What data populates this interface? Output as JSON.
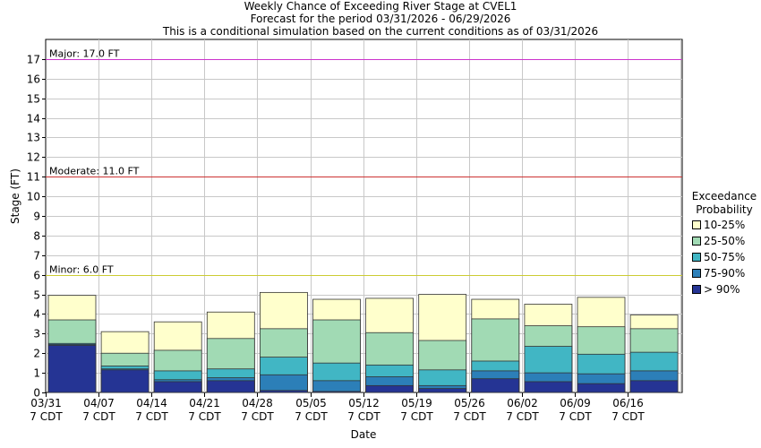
{
  "title_lines": [
    "Weekly Chance of Exceeding River Stage at CVEL1",
    "Forecast for the period 03/31/2026 - 06/29/2026",
    "This is a conditional simulation based on the current conditions as of 03/31/2026"
  ],
  "colors": {
    "p10_25": "#ffffcc",
    "p25_50": "#a1dab4",
    "p50_75": "#41b6c4",
    "p75_90": "#2c7fb8",
    "p90": "#253494",
    "major": "#cc33cc",
    "moderate": "#cc3333",
    "minor": "#cccc33",
    "grid": "#c8c8c8"
  },
  "chart_data": {
    "type": "bar",
    "stacked": true,
    "xlabel": "Date",
    "ylabel": "Stage (FT)",
    "ylim": [
      0,
      18
    ],
    "yticks": [
      0,
      1,
      2,
      3,
      4,
      5,
      6,
      7,
      8,
      9,
      10,
      11,
      12,
      13,
      14,
      15,
      16,
      17
    ],
    "grid": true,
    "legend": {
      "title_lines": [
        "Exceedance",
        "Probability"
      ],
      "placement": "right",
      "entries": [
        "10-25%",
        "25-50%",
        "50-75%",
        "75-90%",
        "> 90%"
      ]
    },
    "categories": [
      "03/31",
      "04/07",
      "04/14",
      "04/21",
      "04/28",
      "05/05",
      "05/12",
      "05/19",
      "05/26",
      "06/02",
      "06/09",
      "06/16"
    ],
    "category_sublabel": "7 CDT",
    "bars": [
      {
        "p90": 2.4,
        "p75_90": 2.45,
        "p50_75": 2.5,
        "p25_50": 3.7,
        "p10_25": 4.95
      },
      {
        "p90": 1.15,
        "p75_90": 1.2,
        "p50_75": 1.35,
        "p25_50": 2.0,
        "p10_25": 3.1
      },
      {
        "p90": 0.55,
        "p75_90": 0.65,
        "p50_75": 1.1,
        "p25_50": 2.15,
        "p10_25": 3.6
      },
      {
        "p90": 0.6,
        "p75_90": 0.75,
        "p50_75": 1.2,
        "p25_50": 2.75,
        "p10_25": 4.1
      },
      {
        "p90": 0.1,
        "p75_90": 0.9,
        "p50_75": 1.8,
        "p25_50": 3.25,
        "p10_25": 5.1
      },
      {
        "p90": 0.05,
        "p75_90": 0.6,
        "p50_75": 1.5,
        "p25_50": 3.7,
        "p10_25": 4.75
      },
      {
        "p90": 0.35,
        "p75_90": 0.8,
        "p50_75": 1.4,
        "p25_50": 3.05,
        "p10_25": 4.8
      },
      {
        "p90": 0.2,
        "p75_90": 0.35,
        "p50_75": 1.15,
        "p25_50": 2.65,
        "p10_25": 5.0
      },
      {
        "p90": 0.7,
        "p75_90": 1.1,
        "p50_75": 1.6,
        "p25_50": 3.75,
        "p10_25": 4.75
      },
      {
        "p90": 0.55,
        "p75_90": 1.0,
        "p50_75": 2.35,
        "p25_50": 3.4,
        "p10_25": 4.5
      },
      {
        "p90": 0.45,
        "p75_90": 0.95,
        "p50_75": 1.95,
        "p25_50": 3.35,
        "p10_25": 4.85
      },
      {
        "p90": 0.6,
        "p75_90": 1.1,
        "p50_75": 2.05,
        "p25_50": 3.25,
        "p10_25": 3.95
      }
    ],
    "thresholds": [
      {
        "label": "Major: 17.0 FT",
        "value": 17.0,
        "color_key": "major"
      },
      {
        "label": "Moderate: 11.0 FT",
        "value": 11.0,
        "color_key": "moderate"
      },
      {
        "label": "Minor: 6.0 FT",
        "value": 6.0,
        "color_key": "minor"
      }
    ]
  }
}
